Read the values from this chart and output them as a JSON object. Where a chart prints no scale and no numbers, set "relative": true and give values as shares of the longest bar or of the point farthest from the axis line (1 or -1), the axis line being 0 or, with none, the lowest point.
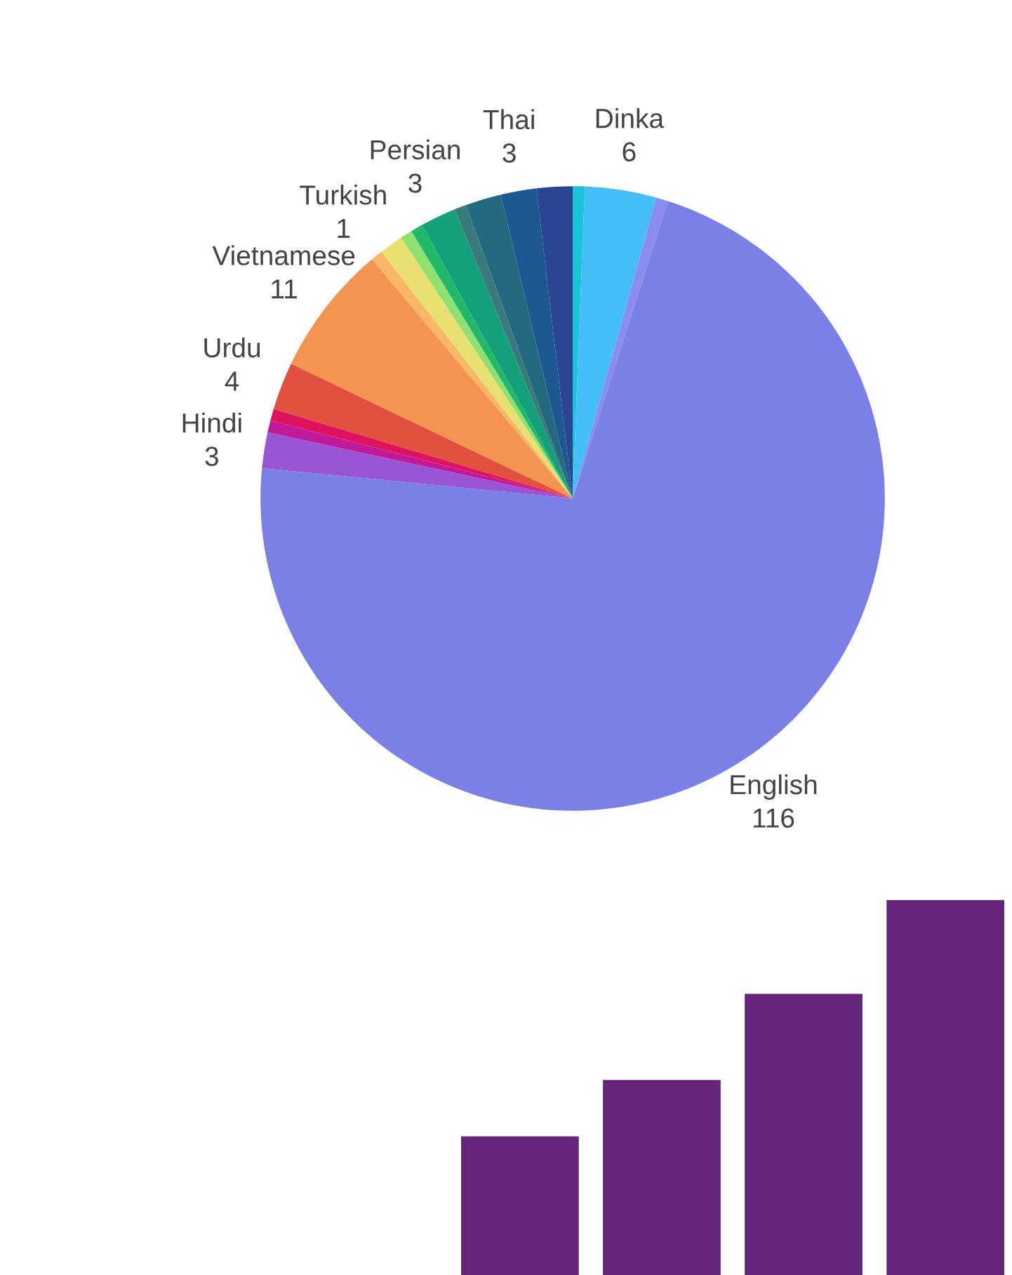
{
  "chart_data": [
    {
      "type": "pie",
      "categories": [
        null,
        "Dinka",
        null,
        "English",
        "Hindi",
        null,
        null,
        "Urdu",
        "Vietnamese",
        "Turkish",
        null,
        null,
        null,
        "Persian",
        null,
        null,
        "Thai",
        null
      ],
      "values": [
        1,
        6,
        1,
        116,
        3,
        1,
        1,
        4,
        11,
        1,
        2,
        1,
        1,
        3,
        1,
        3,
        3,
        3
      ],
      "value_labels": [
        null,
        "6",
        null,
        "116",
        "3",
        null,
        null,
        "4",
        "11",
        "1",
        null,
        null,
        null,
        "3",
        null,
        null,
        "3",
        null
      ],
      "colors": [
        "#19c3d8",
        "#45bef8",
        "#8c8cf0",
        "#7b80e6",
        "#9a55d6",
        "#c01a9a",
        "#e0115f",
        "#e2503f",
        "#f59450",
        "#f8b868",
        "#e8e070",
        "#8ee070",
        "#22b86a",
        "#14a07a",
        "#3a7a7a",
        "#236a80",
        "#1e5890",
        "#2a4592"
      ]
    },
    {
      "type": "bar",
      "relative": true,
      "categories": [
        null,
        null,
        null,
        null
      ],
      "values": [
        0.37,
        0.52,
        0.75,
        1
      ],
      "color": "#64257a"
    }
  ]
}
